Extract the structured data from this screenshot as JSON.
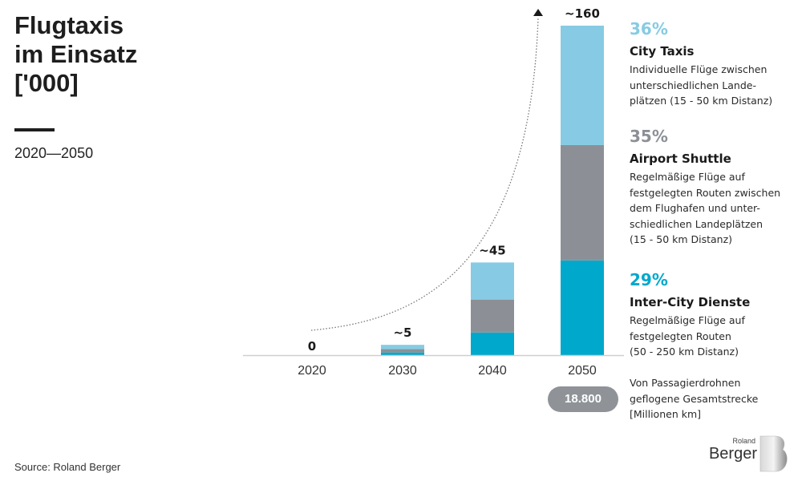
{
  "header": {
    "title_lines": [
      "Flugtaxis",
      "im Einsatz",
      "['000]"
    ],
    "subtitle": "2020—2050"
  },
  "colors": {
    "city_taxis": "#86cbe3",
    "airport_shuttle": "#8c9096",
    "inter_city": "#00a8cc",
    "pill": "#8f9398",
    "text": "#1a1a1a"
  },
  "chart_data": {
    "type": "bar",
    "stacked": true,
    "title": "Flugtaxis im Einsatz ['000]",
    "subtitle": "2020—2050",
    "xlabel": "",
    "ylabel": "",
    "ylim": [
      0,
      160
    ],
    "grid": false,
    "categories": [
      "2020",
      "2030",
      "2040",
      "2050"
    ],
    "totals_labels": [
      "0",
      "~5",
      "~45",
      "~160"
    ],
    "totals": [
      0,
      5,
      45,
      160
    ],
    "series": [
      {
        "name": "Inter-City Dienste",
        "key": "inter_city",
        "values": [
          0,
          1.3,
          11,
          46
        ]
      },
      {
        "name": "Airport Shuttle",
        "key": "airport_shuttle",
        "values": [
          0,
          1.6,
          16,
          56
        ]
      },
      {
        "name": "City Taxis",
        "key": "city_taxis",
        "values": [
          0,
          2.1,
          18,
          58
        ]
      }
    ],
    "trend_arrow": "dotted curve rising from 2020 to above 2050",
    "legend_position": "right"
  },
  "legend": [
    {
      "pct": "36%",
      "name": "City Taxis",
      "desc_lines": [
        "Individuelle Flüge zwischen",
        "unterschiedlichen Lande-",
        "plätzen (15 - 50 km Distanz)"
      ],
      "color_key": "city_taxis"
    },
    {
      "pct": "35%",
      "name": "Airport Shuttle",
      "desc_lines": [
        "Regelmäßige Flüge auf",
        "festgelegten Routen zwischen",
        "dem Flughafen und unter-",
        "schiedlichen Landeplätzen",
        "(15 - 50 km Distanz)"
      ],
      "color_key": "airport_shuttle"
    },
    {
      "pct": "29%",
      "name": "Inter-City Dienste",
      "desc_lines": [
        "Regelmäßige Flüge auf",
        "festgelegten Routen",
        "(50 - 250 km Distanz)"
      ],
      "color_key": "inter_city"
    }
  ],
  "distance": {
    "value": "18.800",
    "note_lines": [
      "Von Passagierdrohnen",
      "geflogene Gesamtstrecke",
      "[Millionen km]"
    ]
  },
  "footer": {
    "source": "Source: Roland Berger",
    "logo_small": "Roland",
    "logo_big": "Berger"
  }
}
